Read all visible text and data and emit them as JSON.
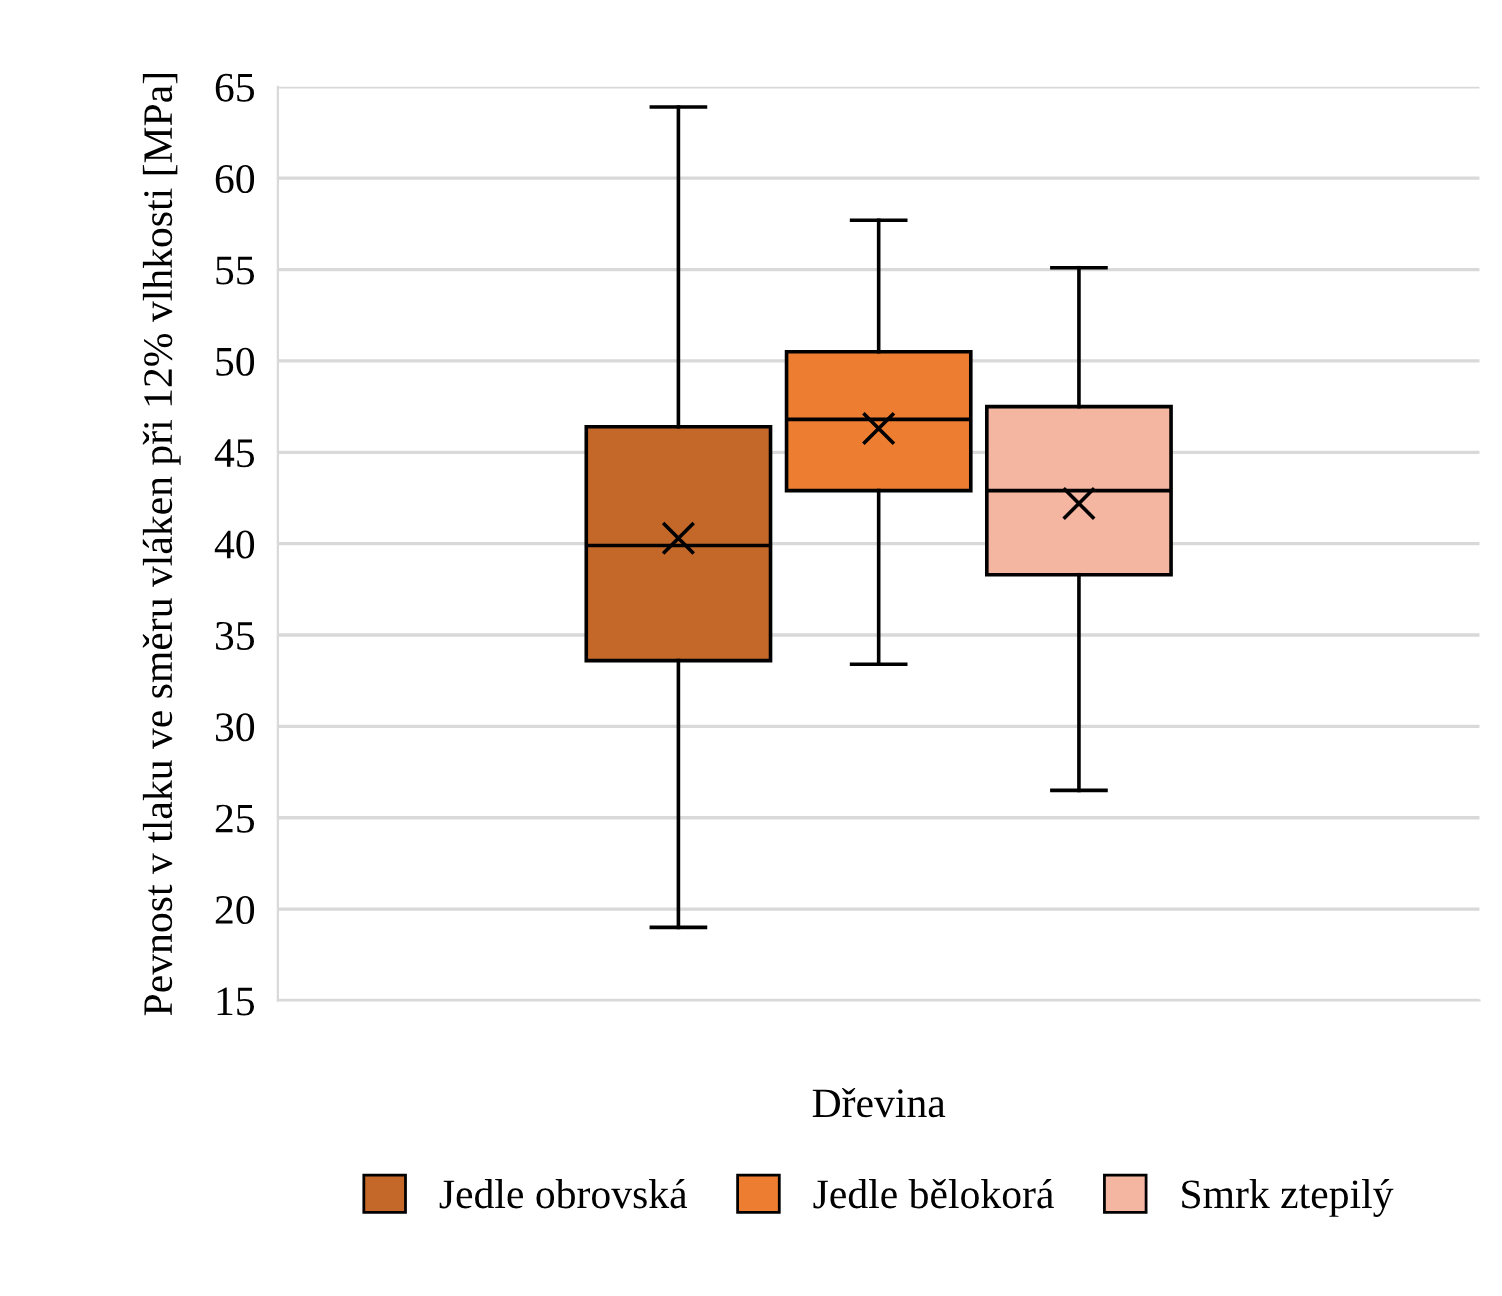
{
  "chart_data": {
    "type": "box",
    "xlabel": "Dřevina",
    "ylabel": "Pevnost v tlaku ve směru vláken při 12% vlhkosti [MPa]",
    "categories": [
      null
    ],
    "series": [
      {
        "name": "Jedle obrovská",
        "color": "#c4682a",
        "boxes": [
          {
            "low": 19.0,
            "q1": 33.6,
            "median": 39.9,
            "q3": 46.4,
            "high": 63.9,
            "mean": 40.3
          }
        ]
      },
      {
        "name": "Jedle bělokorá",
        "color": "#ed7d31",
        "boxes": [
          {
            "low": 33.4,
            "q1": 42.9,
            "median": 46.8,
            "q3": 50.5,
            "high": 57.7,
            "mean": 46.3
          }
        ]
      },
      {
        "name": "Smrk ztepilý",
        "color": "#f4b6a0",
        "boxes": [
          {
            "low": 26.5,
            "q1": 38.3,
            "median": 42.9,
            "q3": 47.5,
            "high": 55.1,
            "mean": 42.2
          }
        ]
      }
    ],
    "ylim": [
      15,
      65
    ],
    "yticks": [
      15,
      20,
      25,
      30,
      35,
      40,
      45,
      50,
      55,
      60,
      65
    ],
    "grid": "y",
    "legend": "bottom",
    "marker": "cross"
  }
}
